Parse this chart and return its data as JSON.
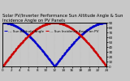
{
  "title": "Solar PV/Inverter Performance Sun Altitude Angle & Sun Incidence Angle on PV Panels",
  "legend_line1": "--- Sun Altitude Angle",
  "legend_line2": "--- Sun Incidence Angle on PV",
  "y_right_ticks": [
    0,
    10,
    20,
    30,
    40,
    50,
    60,
    70,
    80,
    90
  ],
  "ylim": [
    0,
    90
  ],
  "xlim": [
    0,
    24
  ],
  "x_ticks": [
    0,
    2,
    4,
    6,
    8,
    10,
    12,
    14,
    16,
    18,
    20,
    22,
    24
  ],
  "blue_color": "#0000cc",
  "red_color": "#cc0000",
  "bg_color": "#c8c8c8",
  "grid_color": "#b0b0b0",
  "title_fontsize": 3.8,
  "tick_fontsize": 3.0,
  "legend_fontsize": 3.0,
  "linewidth": 1.2,
  "markersize": 1.0
}
